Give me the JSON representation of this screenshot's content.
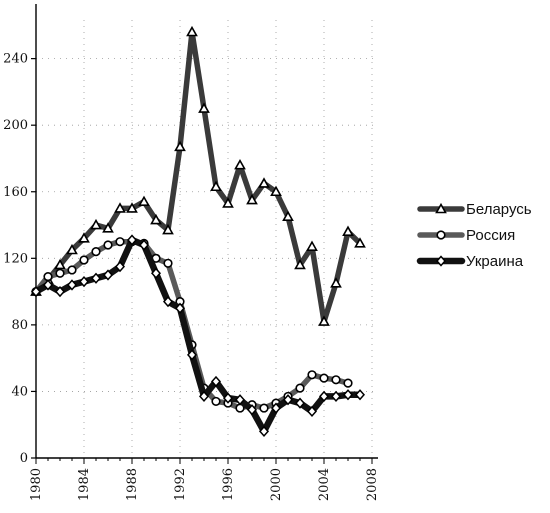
{
  "chart_data": {
    "type": "line",
    "title": "",
    "xlabel": "",
    "ylabel": "",
    "xlim": [
      1980,
      2008
    ],
    "ylim": [
      0,
      260
    ],
    "x_ticks": [
      1980,
      1984,
      1988,
      1992,
      1996,
      2000,
      2004,
      2008
    ],
    "x_tick_labels": [
      "1980",
      "1984",
      "1988",
      "1992",
      "1996",
      "2000",
      "2004",
      "2008"
    ],
    "y_ticks": [
      0,
      40,
      80,
      120,
      160,
      200,
      240
    ],
    "y_tick_labels": [
      "0",
      "40",
      "80",
      "120",
      "160",
      "200",
      "240"
    ],
    "legend_position": "right",
    "grid": false,
    "series": [
      {
        "name": "Беларусь",
        "marker": "triangle",
        "x": [
          1980,
          1981,
          1982,
          1983,
          1984,
          1985,
          1986,
          1987,
          1988,
          1989,
          1990,
          1991,
          1992,
          1993,
          1994,
          1995,
          1996,
          1997,
          1998,
          1999,
          2000,
          2001,
          2002,
          2003,
          2004,
          2005,
          2006,
          2007
        ],
        "y": [
          100,
          107,
          116,
          125,
          132,
          140,
          138,
          150,
          150,
          154,
          143,
          137,
          187,
          256,
          210,
          163,
          153,
          176,
          155,
          165,
          160,
          145,
          116,
          127,
          82,
          105,
          136,
          129
        ]
      },
      {
        "name": "Россия",
        "marker": "circle",
        "x": [
          1980,
          1981,
          1982,
          1983,
          1984,
          1985,
          1986,
          1987,
          1988,
          1989,
          1990,
          1991,
          1992,
          1993,
          1994,
          1995,
          1996,
          1997,
          1998,
          1999,
          2000,
          2001,
          2002,
          2003,
          2004,
          2005,
          2006
        ],
        "y": [
          100,
          109,
          111,
          113,
          119,
          124,
          128,
          130,
          130,
          129,
          120,
          117,
          94,
          68,
          42,
          34,
          33,
          30,
          32,
          30,
          33,
          37,
          42,
          50,
          48,
          47,
          45
        ]
      },
      {
        "name": "Украина",
        "marker": "diamond",
        "x": [
          1980,
          1981,
          1982,
          1983,
          1984,
          1985,
          1986,
          1987,
          1988,
          1989,
          1990,
          1991,
          1992,
          1993,
          1994,
          1995,
          1996,
          1997,
          1998,
          1999,
          2000,
          2001,
          2002,
          2003,
          2004,
          2005,
          2006,
          2007
        ],
        "y": [
          100,
          104,
          100,
          104,
          106,
          108,
          110,
          115,
          131,
          128,
          111,
          94,
          90,
          62,
          37,
          46,
          36,
          35,
          29,
          16,
          30,
          35,
          33,
          28,
          37,
          37,
          38,
          38
        ]
      }
    ]
  }
}
